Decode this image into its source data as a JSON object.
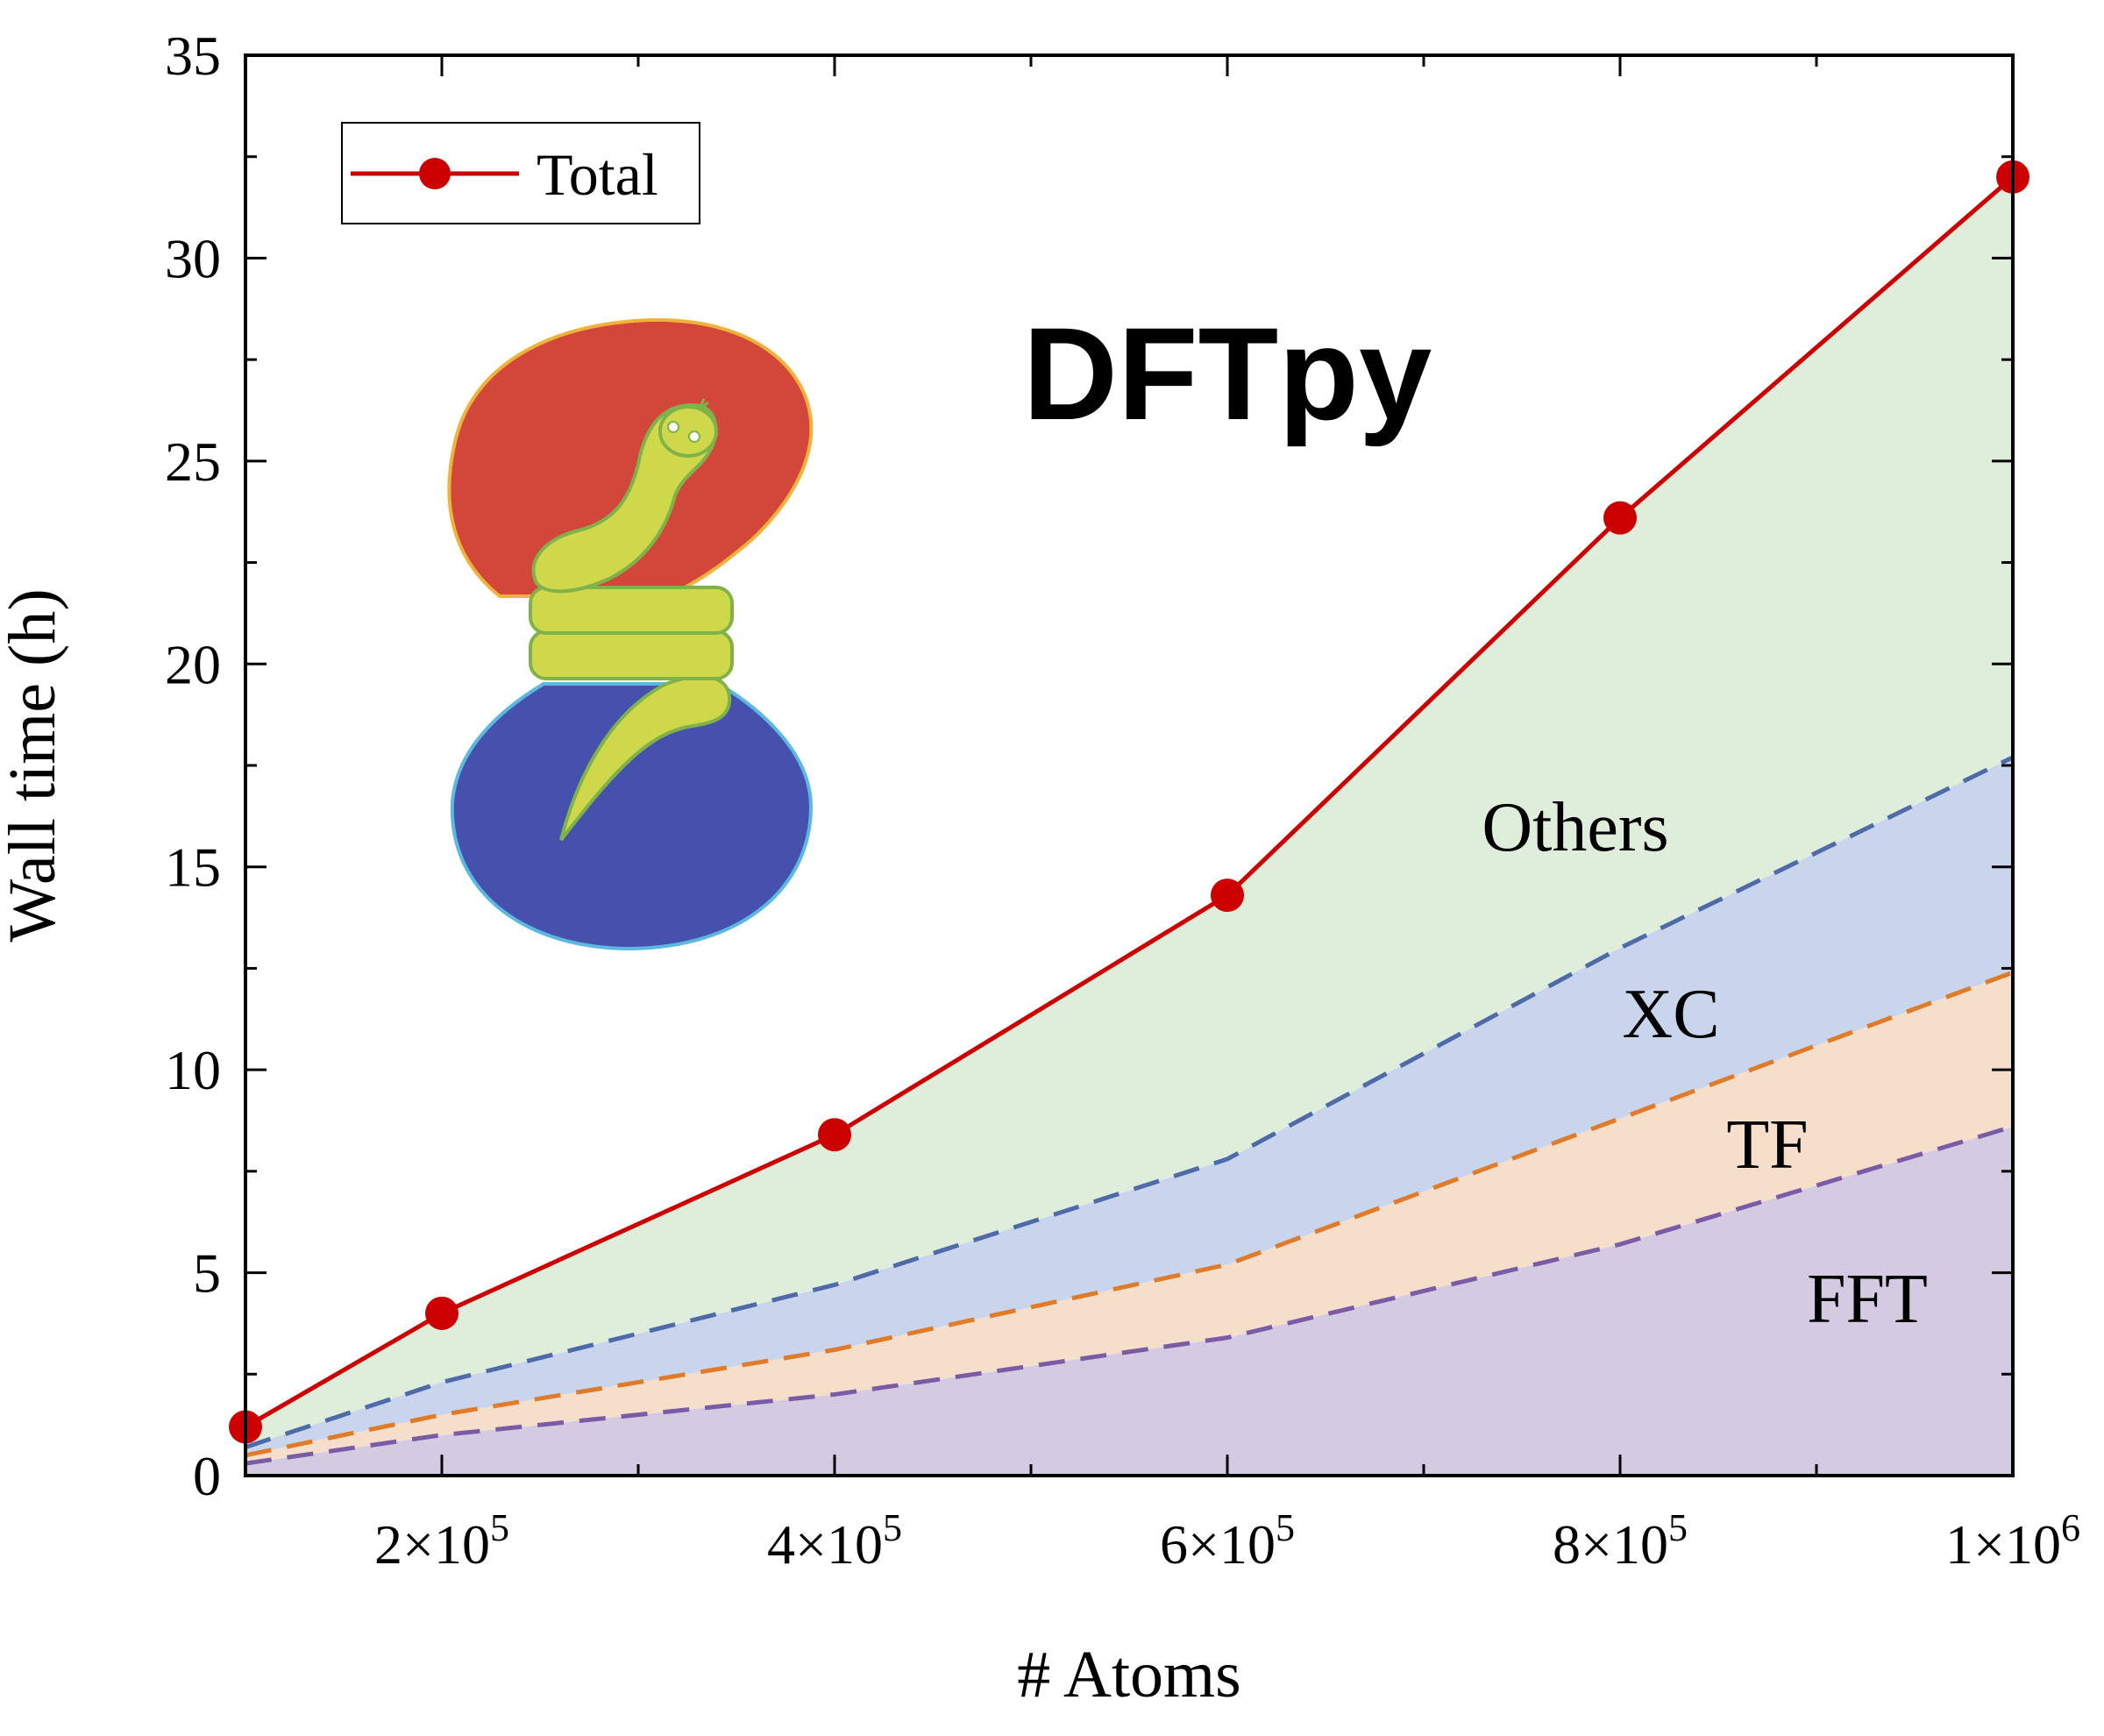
{
  "chart_data": {
    "type": "area",
    "title": "DFTpy",
    "xlabel": "# Atoms",
    "ylabel": "Wall time (h)",
    "xlim": [
      100000,
      1000000
    ],
    "ylim": [
      0,
      35
    ],
    "x_ticks": [
      {
        "value": 200000,
        "mantissa": "2",
        "exponent": "5"
      },
      {
        "value": 400000,
        "mantissa": "4",
        "exponent": "5"
      },
      {
        "value": 600000,
        "mantissa": "6",
        "exponent": "5"
      },
      {
        "value": 800000,
        "mantissa": "8",
        "exponent": "5"
      },
      {
        "value": 1000000,
        "mantissa": "1",
        "exponent": "6"
      }
    ],
    "y_ticks": [
      "0",
      "5",
      "10",
      "15",
      "20",
      "25",
      "30",
      "35"
    ],
    "x": [
      100000,
      200000,
      400000,
      600000,
      800000,
      1000000
    ],
    "stacked_boundaries": [
      {
        "name": "FFT",
        "values": [
          0.3,
          1.0,
          2.0,
          3.4,
          5.7,
          8.6
        ],
        "line_color": "#7b5aa6",
        "fill_color": "#d4cbe2"
      },
      {
        "name": "TF",
        "values": [
          0.5,
          1.5,
          3.1,
          5.2,
          8.8,
          12.4
        ],
        "line_color": "#e07b2a",
        "fill_color": "#f6dfca"
      },
      {
        "name": "XC",
        "values": [
          0.7,
          2.3,
          4.7,
          7.8,
          13.0,
          17.7
        ],
        "line_color": "#4f6aa8",
        "fill_color": "#c9d5ec"
      },
      {
        "name": "Others",
        "values": [
          1.2,
          4.0,
          8.4,
          14.3,
          23.6,
          32.0
        ],
        "line_color": "#cc0000",
        "fill_color": "#deeedb"
      }
    ],
    "series": [
      {
        "name": "Total",
        "values": [
          1.2,
          4.0,
          8.4,
          14.3,
          23.6,
          32.0
        ],
        "color": "#cc0000",
        "marker": "circle"
      }
    ],
    "band_labels": [
      "Others",
      "XC",
      "TF",
      "FFT"
    ],
    "legend": {
      "position": "top-left",
      "entries": [
        "Total"
      ]
    },
    "grid": false,
    "logo": {
      "depicts": "snake coiled around an hourglass",
      "colors": {
        "top": "#d2473a",
        "bottom": "#4651ae",
        "snake": "#cfd84a"
      }
    }
  }
}
